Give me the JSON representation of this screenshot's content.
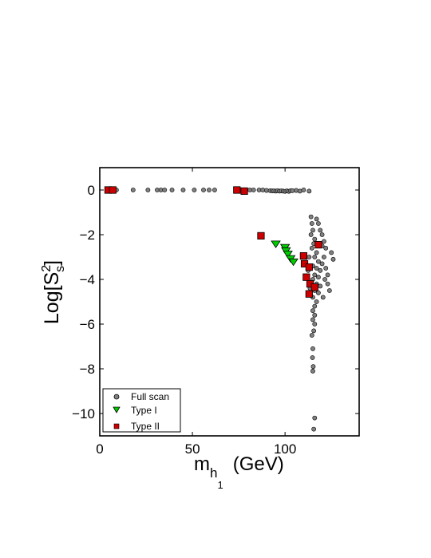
{
  "chart_data": {
    "type": "scatter",
    "xlabel": {
      "main": "m",
      "sub": "h",
      "subsub": "1",
      "unit": "(GeV)"
    },
    "ylabel": {
      "prefix": "Log[S",
      "sup": "2",
      "sub": "s",
      "suffix": "]"
    },
    "xlim": [
      0,
      140
    ],
    "ylim": [
      -11,
      1
    ],
    "xticks": [
      0,
      50,
      100
    ],
    "yticks": [
      0,
      -2,
      -4,
      -6,
      -8,
      -10
    ],
    "xtick_labels": [
      "0",
      "50",
      "100"
    ],
    "ytick_labels": [
      "0",
      "−2",
      "−4",
      "−6",
      "−8",
      "−10"
    ],
    "grid": false,
    "legend_position": "bottom-left",
    "series": [
      {
        "name": "Full scan",
        "marker": "circle",
        "color": "#808080",
        "edge": "#000000",
        "points": [
          [
            5,
            0
          ],
          [
            9,
            0
          ],
          [
            18,
            0
          ],
          [
            26,
            0
          ],
          [
            31,
            0
          ],
          [
            33,
            0
          ],
          [
            35,
            0
          ],
          [
            39,
            0
          ],
          [
            45,
            0
          ],
          [
            51,
            0
          ],
          [
            56,
            0
          ],
          [
            59,
            0
          ],
          [
            62,
            0
          ],
          [
            74,
            0
          ],
          [
            76,
            0
          ],
          [
            79,
            0
          ],
          [
            81,
            0
          ],
          [
            83,
            0
          ],
          [
            86,
            0
          ],
          [
            88,
            0
          ],
          [
            90,
            -0.02
          ],
          [
            92,
            -0.03
          ],
          [
            93,
            -0.04
          ],
          [
            94,
            -0.04
          ],
          [
            95,
            -0.05
          ],
          [
            96,
            -0.03
          ],
          [
            97,
            -0.05
          ],
          [
            98,
            -0.04
          ],
          [
            99,
            -0.05
          ],
          [
            100,
            -0.06
          ],
          [
            101,
            -0.04
          ],
          [
            102,
            -0.06
          ],
          [
            103,
            -0.03
          ],
          [
            104,
            -0.03
          ],
          [
            106,
            -0.02
          ],
          [
            108,
            -0.05
          ],
          [
            110,
            0
          ],
          [
            113,
            -0.05
          ],
          [
            114,
            -1.2
          ],
          [
            114.5,
            -1.5
          ],
          [
            115,
            -1.8
          ],
          [
            114,
            -2
          ],
          [
            116,
            -2.2
          ],
          [
            115.5,
            -2.4
          ],
          [
            114.5,
            -2.6
          ],
          [
            117,
            -2.8
          ],
          [
            116,
            -3
          ],
          [
            118,
            -3.2
          ],
          [
            115,
            -3.4
          ],
          [
            117,
            -3.5
          ],
          [
            119,
            -3.6
          ],
          [
            116,
            -3.8
          ],
          [
            118,
            -3.9
          ],
          [
            115,
            -4
          ],
          [
            117,
            -4.2
          ],
          [
            119,
            -4.3
          ],
          [
            116,
            -4.5
          ],
          [
            118,
            -4.6
          ],
          [
            115,
            -4.8
          ],
          [
            117,
            -5
          ],
          [
            116,
            -5.2
          ],
          [
            115,
            -5.4
          ],
          [
            116,
            -5.6
          ],
          [
            115,
            -5.8
          ],
          [
            116,
            -6
          ],
          [
            115.5,
            -6.3
          ],
          [
            114.5,
            -6.5
          ],
          [
            115,
            -7.1
          ],
          [
            114.8,
            -7.5
          ],
          [
            115.2,
            -7.9
          ],
          [
            115,
            -8.1
          ],
          [
            116,
            -10.2
          ],
          [
            115.5,
            -10.7
          ],
          [
            120,
            -2.5
          ],
          [
            121,
            -3
          ],
          [
            122,
            -3.5
          ],
          [
            123,
            -4.2
          ],
          [
            124,
            -4.5
          ],
          [
            125,
            -2.8
          ],
          [
            126,
            -3.1
          ],
          [
            120,
            -3.3
          ],
          [
            113,
            -3
          ],
          [
            112.5,
            -3.6
          ],
          [
            113.5,
            -4.4
          ],
          [
            119,
            -1.8
          ],
          [
            118,
            -1.5
          ],
          [
            117,
            -1.3
          ],
          [
            120,
            -2
          ],
          [
            121,
            -2.3
          ],
          [
            122,
            -2.6
          ],
          [
            121.5,
            -4
          ],
          [
            120.5,
            -4.8
          ],
          [
            123,
            -3.8
          ]
        ]
      },
      {
        "name": "Type I",
        "marker": "triangle",
        "color": "#00cc00",
        "edge": "#000000",
        "points": [
          [
            95,
            -2.4
          ],
          [
            100,
            -2.55
          ],
          [
            100.5,
            -2.7
          ],
          [
            101.5,
            -2.85
          ],
          [
            103,
            -3.05
          ],
          [
            104.5,
            -3.2
          ]
        ]
      },
      {
        "name": "Type II",
        "marker": "square",
        "color": "#cc0000",
        "edge": "#000000",
        "points": [
          [
            4.5,
            0
          ],
          [
            7,
            0
          ],
          [
            74,
            0
          ],
          [
            78,
            -0.05
          ],
          [
            87,
            -2.05
          ],
          [
            110,
            -2.95
          ],
          [
            110.5,
            -3.3
          ],
          [
            113,
            -3.45
          ],
          [
            118,
            -2.45
          ],
          [
            111.5,
            -3.9
          ],
          [
            113.5,
            -4.2
          ],
          [
            116,
            -4.35
          ],
          [
            113,
            -4.65
          ]
        ]
      }
    ]
  }
}
